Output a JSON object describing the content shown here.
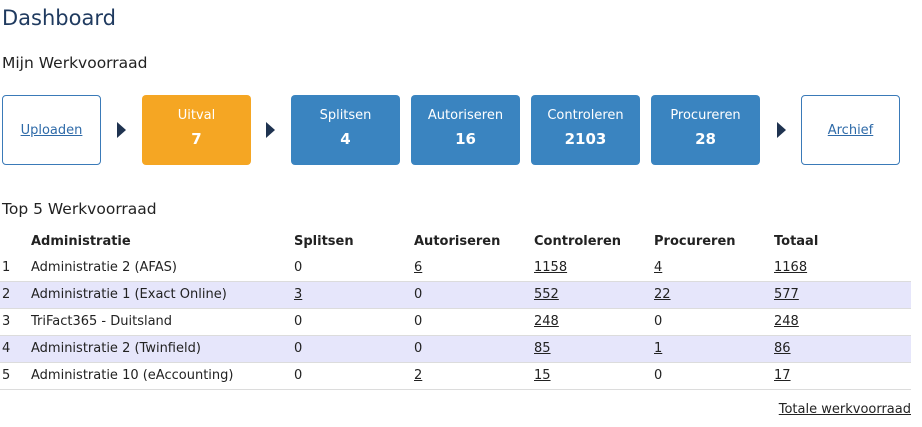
{
  "header": {
    "title": "Dashboard"
  },
  "werkvoorraad": {
    "title": "Mijn Werkvoorraad",
    "upload_label": "Uploaden",
    "archive_label": "Archief",
    "steps": [
      {
        "label": "Uitval",
        "count": "7",
        "color": "#f5a623"
      },
      {
        "label": "Splitsen",
        "count": "4",
        "color": "#3a84c0"
      },
      {
        "label": "Autoriseren",
        "count": "16",
        "color": "#3a84c0"
      },
      {
        "label": "Controleren",
        "count": "2103",
        "color": "#3a84c0"
      },
      {
        "label": "Procureren",
        "count": "28",
        "color": "#3a84c0"
      }
    ]
  },
  "top5": {
    "title": "Top 5 Werkvoorraad",
    "columns": [
      "",
      "Administratie",
      "Splitsen",
      "Autoriseren",
      "Controleren",
      "Procureren",
      "Totaal"
    ],
    "rows": [
      [
        "1",
        "Administratie 2 (AFAS)",
        "0",
        "6",
        "1158",
        "4",
        "1168"
      ],
      [
        "2",
        "Administratie 1 (Exact Online)",
        "3",
        "0",
        "552",
        "22",
        "577"
      ],
      [
        "3",
        "TriFact365 - Duitsland",
        "0",
        "0",
        "248",
        "0",
        "248"
      ],
      [
        "4",
        "Administratie 2 (Twinfield)",
        "0",
        "0",
        "85",
        "1",
        "86"
      ],
      [
        "5",
        "Administratie 10 (eAccounting)",
        "0",
        "2",
        "15",
        "0",
        "17"
      ]
    ],
    "total_link": "Totale werkvoorraad"
  },
  "colors": {
    "accent": "#3a84c0",
    "warning": "#f5a623",
    "row_alt": "#e6e6fb"
  }
}
